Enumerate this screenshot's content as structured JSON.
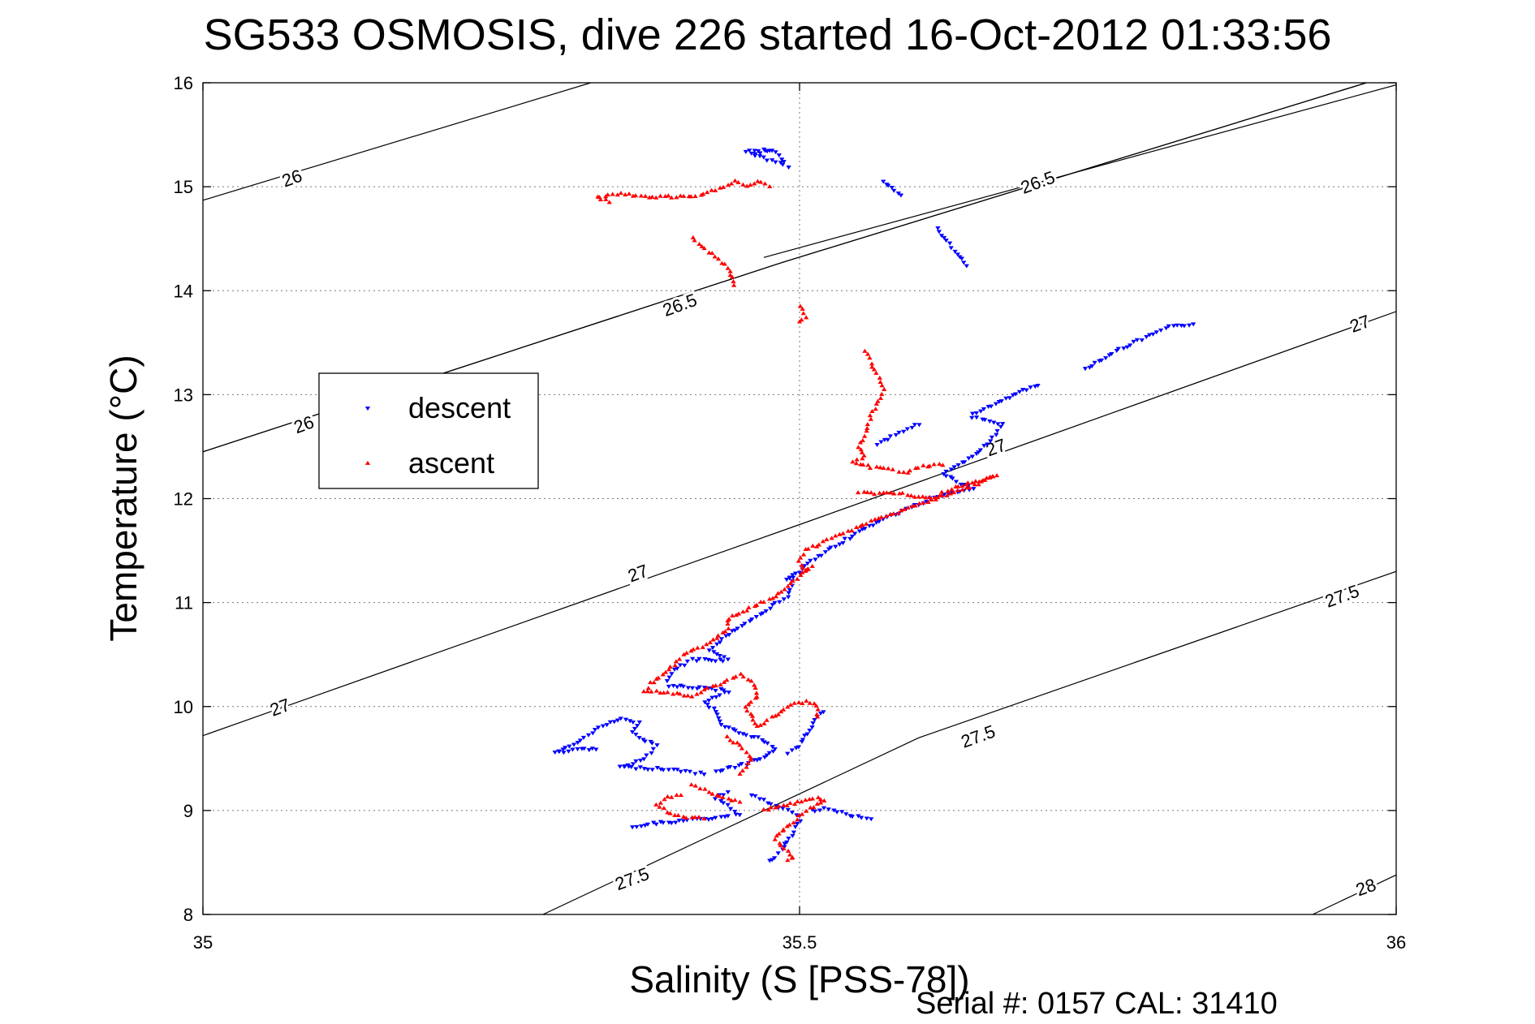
{
  "chart_data": {
    "type": "scatter",
    "title": "SG533 OSMOSIS, dive 226 started 16-Oct-2012 01:33:56",
    "xlabel": "Salinity (S [PSS-78])",
    "ylabel": "Temperature (°C)",
    "footer": "Serial #: 0157  CAL: 31410",
    "xlim": [
      35,
      36
    ],
    "ylim": [
      8,
      16
    ],
    "xticks": [
      35,
      35.5,
      36
    ],
    "xtick_labels": [
      "35",
      "35.5",
      "36"
    ],
    "yticks": [
      8,
      9,
      10,
      11,
      12,
      13,
      14,
      15,
      16
    ],
    "ytick_labels": [
      "8",
      "9",
      "10",
      "11",
      "12",
      "13",
      "14",
      "15",
      "16"
    ],
    "grid": true,
    "legend_position": "left",
    "density_contours": [
      {
        "level": "26",
        "points": [
          [
            35,
            14.87
          ],
          [
            35.325,
            16
          ]
        ]
      },
      {
        "level": "26",
        "points": [
          [
            35,
            12.45
          ],
          [
            35.485,
            14.27
          ],
          [
            35.975,
            16
          ]
        ]
      },
      {
        "level": "26.5",
        "points": [
          [
            35,
            12.45
          ],
          [
            35.485,
            14.27
          ],
          [
            35.975,
            16
          ]
        ]
      },
      {
        "level": "26.5",
        "points": [
          [
            35.47,
            14.32
          ],
          [
            36,
            15.98
          ]
        ]
      },
      {
        "level": "27",
        "points": [
          [
            35,
            9.72
          ],
          [
            35.5,
            11.75
          ],
          [
            36,
            13.8
          ]
        ]
      },
      {
        "level": "27.5",
        "points": [
          [
            35.285,
            8
          ],
          [
            35.6,
            9.7
          ],
          [
            36,
            11.3
          ]
        ]
      },
      {
        "level": "28",
        "points": [
          [
            35.93,
            8
          ],
          [
            36,
            8.38
          ]
        ]
      }
    ],
    "contour_labels": [
      {
        "text": "26",
        "x": 35.075,
        "y": 15.07
      },
      {
        "text": "26",
        "x": 35.085,
        "y": 12.7
      },
      {
        "text": "26.5",
        "x": 35.4,
        "y": 13.85
      },
      {
        "text": "26.5",
        "x": 35.7,
        "y": 15.03
      },
      {
        "text": "27",
        "x": 35.065,
        "y": 9.98
      },
      {
        "text": "27",
        "x": 35.365,
        "y": 11.27
      },
      {
        "text": "27",
        "x": 35.665,
        "y": 12.48
      },
      {
        "text": "27",
        "x": 35.97,
        "y": 13.67
      },
      {
        "text": "27.5",
        "x": 35.36,
        "y": 8.33
      },
      {
        "text": "27.5",
        "x": 35.65,
        "y": 9.7
      },
      {
        "text": "27.5",
        "x": 35.955,
        "y": 11.05
      },
      {
        "text": "28",
        "x": 35.975,
        "y": 8.25
      }
    ],
    "series": [
      {
        "name": "descent",
        "color": "#0000ff",
        "marker": "triangle-down",
        "path": [
          [
            35.455,
            15.34
          ],
          [
            35.47,
            15.36
          ],
          [
            35.48,
            15.33
          ],
          [
            35.49,
            15.2
          ],
          [
            35.46,
            15.32
          ],
          [
            35.475,
            15.35
          ],
          [
            35.57,
            15.05
          ],
          [
            35.585,
            14.92
          ],
          [
            35.615,
            14.6
          ],
          [
            35.64,
            14.24
          ],
          [
            35.74,
            13.25
          ],
          [
            35.765,
            13.42
          ],
          [
            35.79,
            13.55
          ],
          [
            35.81,
            13.65
          ],
          [
            35.83,
            13.68
          ],
          [
            35.7,
            13.1
          ],
          [
            35.67,
            12.95
          ],
          [
            35.645,
            12.82
          ],
          [
            35.6,
            12.72
          ],
          [
            35.58,
            12.62
          ],
          [
            35.565,
            12.52
          ],
          [
            35.645,
            12.78
          ],
          [
            35.66,
            12.75
          ],
          [
            35.67,
            12.72
          ],
          [
            35.66,
            12.55
          ],
          [
            35.645,
            12.4
          ],
          [
            35.63,
            12.3
          ],
          [
            35.62,
            12.25
          ],
          [
            35.635,
            12.15
          ],
          [
            35.645,
            12.1
          ],
          [
            35.625,
            12.05
          ],
          [
            35.61,
            12.0
          ],
          [
            35.59,
            11.9
          ],
          [
            35.57,
            11.8
          ],
          [
            35.55,
            11.68
          ],
          [
            35.53,
            11.55
          ],
          [
            35.51,
            11.4
          ],
          [
            35.5,
            11.3
          ],
          [
            35.49,
            11.22
          ],
          [
            35.495,
            11.25
          ],
          [
            35.49,
            11.05
          ],
          [
            35.48,
            11.0
          ],
          [
            35.47,
            10.9
          ],
          [
            35.455,
            10.8
          ],
          [
            35.44,
            10.7
          ],
          [
            35.43,
            10.6
          ],
          [
            35.425,
            10.55
          ],
          [
            35.44,
            10.45
          ],
          [
            35.41,
            10.45
          ],
          [
            35.395,
            10.35
          ],
          [
            35.39,
            10.25
          ],
          [
            35.39,
            10.2
          ],
          [
            35.42,
            10.18
          ],
          [
            35.44,
            10.15
          ],
          [
            35.42,
            10.05
          ],
          [
            35.43,
            9.95
          ],
          [
            35.435,
            9.82
          ],
          [
            35.45,
            9.75
          ],
          [
            35.465,
            9.7
          ],
          [
            35.48,
            9.6
          ],
          [
            35.47,
            9.52
          ],
          [
            35.455,
            9.45
          ],
          [
            35.43,
            9.38
          ],
          [
            35.49,
            9.55
          ],
          [
            35.5,
            9.62
          ],
          [
            35.505,
            9.72
          ],
          [
            35.51,
            9.8
          ],
          [
            35.515,
            9.9
          ],
          [
            35.52,
            9.95
          ],
          [
            35.33,
            9.6
          ],
          [
            35.31,
            9.58
          ],
          [
            35.295,
            9.56
          ],
          [
            35.32,
            9.7
          ],
          [
            35.335,
            9.82
          ],
          [
            35.35,
            9.88
          ],
          [
            35.365,
            9.85
          ],
          [
            35.36,
            9.75
          ],
          [
            35.38,
            9.62
          ],
          [
            35.37,
            9.5
          ],
          [
            35.36,
            9.45
          ],
          [
            35.35,
            9.42
          ],
          [
            35.39,
            9.4
          ],
          [
            35.405,
            9.38
          ],
          [
            35.42,
            9.35
          ],
          [
            35.46,
            9.15
          ],
          [
            35.47,
            9.1
          ],
          [
            35.48,
            9.05
          ],
          [
            35.49,
            9.0
          ],
          [
            35.5,
            8.95
          ],
          [
            35.45,
            8.95
          ],
          [
            35.44,
            9.05
          ],
          [
            35.43,
            9.12
          ],
          [
            35.44,
            9.18
          ],
          [
            35.36,
            8.85
          ],
          [
            35.38,
            8.88
          ],
          [
            35.4,
            8.9
          ],
          [
            35.42,
            8.92
          ],
          [
            35.44,
            8.95
          ],
          [
            35.51,
            9.0
          ],
          [
            35.525,
            9.02
          ],
          [
            35.545,
            8.95
          ],
          [
            35.56,
            8.92
          ],
          [
            35.5,
            8.9
          ],
          [
            35.495,
            8.8
          ],
          [
            35.49,
            8.7
          ],
          [
            35.485,
            8.62
          ],
          [
            35.48,
            8.55
          ],
          [
            35.475,
            8.52
          ]
        ]
      },
      {
        "name": "ascent",
        "color": "#ff0000",
        "marker": "triangle-up",
        "path": [
          [
            35.34,
            14.85
          ],
          [
            35.33,
            14.9
          ],
          [
            35.35,
            14.93
          ],
          [
            35.37,
            14.9
          ],
          [
            35.39,
            14.9
          ],
          [
            35.41,
            14.9
          ],
          [
            35.42,
            14.92
          ],
          [
            35.43,
            14.97
          ],
          [
            35.44,
            15.02
          ],
          [
            35.445,
            15.05
          ],
          [
            35.455,
            15.0
          ],
          [
            35.465,
            15.05
          ],
          [
            35.475,
            15.0
          ],
          [
            35.41,
            14.5
          ],
          [
            35.44,
            14.22
          ],
          [
            35.445,
            14.05
          ],
          [
            35.5,
            13.85
          ],
          [
            35.505,
            13.75
          ],
          [
            35.5,
            13.7
          ],
          [
            35.555,
            13.42
          ],
          [
            35.56,
            13.3
          ],
          [
            35.565,
            13.2
          ],
          [
            35.57,
            13.05
          ],
          [
            35.565,
            12.9
          ],
          [
            35.56,
            12.8
          ],
          [
            35.555,
            12.6
          ],
          [
            35.55,
            12.5
          ],
          [
            35.555,
            12.4
          ],
          [
            35.545,
            12.35
          ],
          [
            35.56,
            12.3
          ],
          [
            35.575,
            12.28
          ],
          [
            35.59,
            12.25
          ],
          [
            35.6,
            12.3
          ],
          [
            35.61,
            12.32
          ],
          [
            35.62,
            12.32
          ],
          [
            35.55,
            12.05
          ],
          [
            35.56,
            12.05
          ],
          [
            35.58,
            12.05
          ],
          [
            35.6,
            12.02
          ],
          [
            35.61,
            12.0
          ],
          [
            35.63,
            12.1
          ],
          [
            35.645,
            12.15
          ],
          [
            35.66,
            12.2
          ],
          [
            35.665,
            12.22
          ],
          [
            35.64,
            12.1
          ],
          [
            35.61,
            11.98
          ],
          [
            35.585,
            11.88
          ],
          [
            35.56,
            11.78
          ],
          [
            35.54,
            11.68
          ],
          [
            35.52,
            11.58
          ],
          [
            35.505,
            11.5
          ],
          [
            35.5,
            11.4
          ],
          [
            35.505,
            11.3
          ],
          [
            35.51,
            11.35
          ],
          [
            35.495,
            11.2
          ],
          [
            35.48,
            11.05
          ],
          [
            35.465,
            10.98
          ],
          [
            35.455,
            10.92
          ],
          [
            35.44,
            10.85
          ],
          [
            35.44,
            10.75
          ],
          [
            35.425,
            10.62
          ],
          [
            35.415,
            10.55
          ],
          [
            35.405,
            10.52
          ],
          [
            35.395,
            10.4
          ],
          [
            35.385,
            10.3
          ],
          [
            35.375,
            10.22
          ],
          [
            35.37,
            10.15
          ],
          [
            35.41,
            10.1
          ],
          [
            35.43,
            10.2
          ],
          [
            35.45,
            10.3
          ],
          [
            35.46,
            10.25
          ],
          [
            35.465,
            10.1
          ],
          [
            35.455,
            10.0
          ],
          [
            35.46,
            9.9
          ],
          [
            35.465,
            9.8
          ],
          [
            35.49,
            10.0
          ],
          [
            35.505,
            10.05
          ],
          [
            35.515,
            10.0
          ],
          [
            35.515,
            9.9
          ],
          [
            35.44,
            9.7
          ],
          [
            35.45,
            9.62
          ],
          [
            35.46,
            9.5
          ],
          [
            35.455,
            9.42
          ],
          [
            35.45,
            9.35
          ],
          [
            35.41,
            9.25
          ],
          [
            35.42,
            9.2
          ],
          [
            35.43,
            9.15
          ],
          [
            35.44,
            9.1
          ],
          [
            35.45,
            9.08
          ],
          [
            35.4,
            9.15
          ],
          [
            35.39,
            9.12
          ],
          [
            35.38,
            9.05
          ],
          [
            35.395,
            8.95
          ],
          [
            35.42,
            8.92
          ],
          [
            35.47,
            9.0
          ],
          [
            35.49,
            9.05
          ],
          [
            35.505,
            9.1
          ],
          [
            35.515,
            9.12
          ],
          [
            35.52,
            9.1
          ],
          [
            35.5,
            8.95
          ],
          [
            35.495,
            8.88
          ],
          [
            35.485,
            8.8
          ],
          [
            35.48,
            8.72
          ],
          [
            35.485,
            8.65
          ],
          [
            35.49,
            8.6
          ],
          [
            35.495,
            8.55
          ],
          [
            35.49,
            8.52
          ]
        ]
      }
    ]
  }
}
